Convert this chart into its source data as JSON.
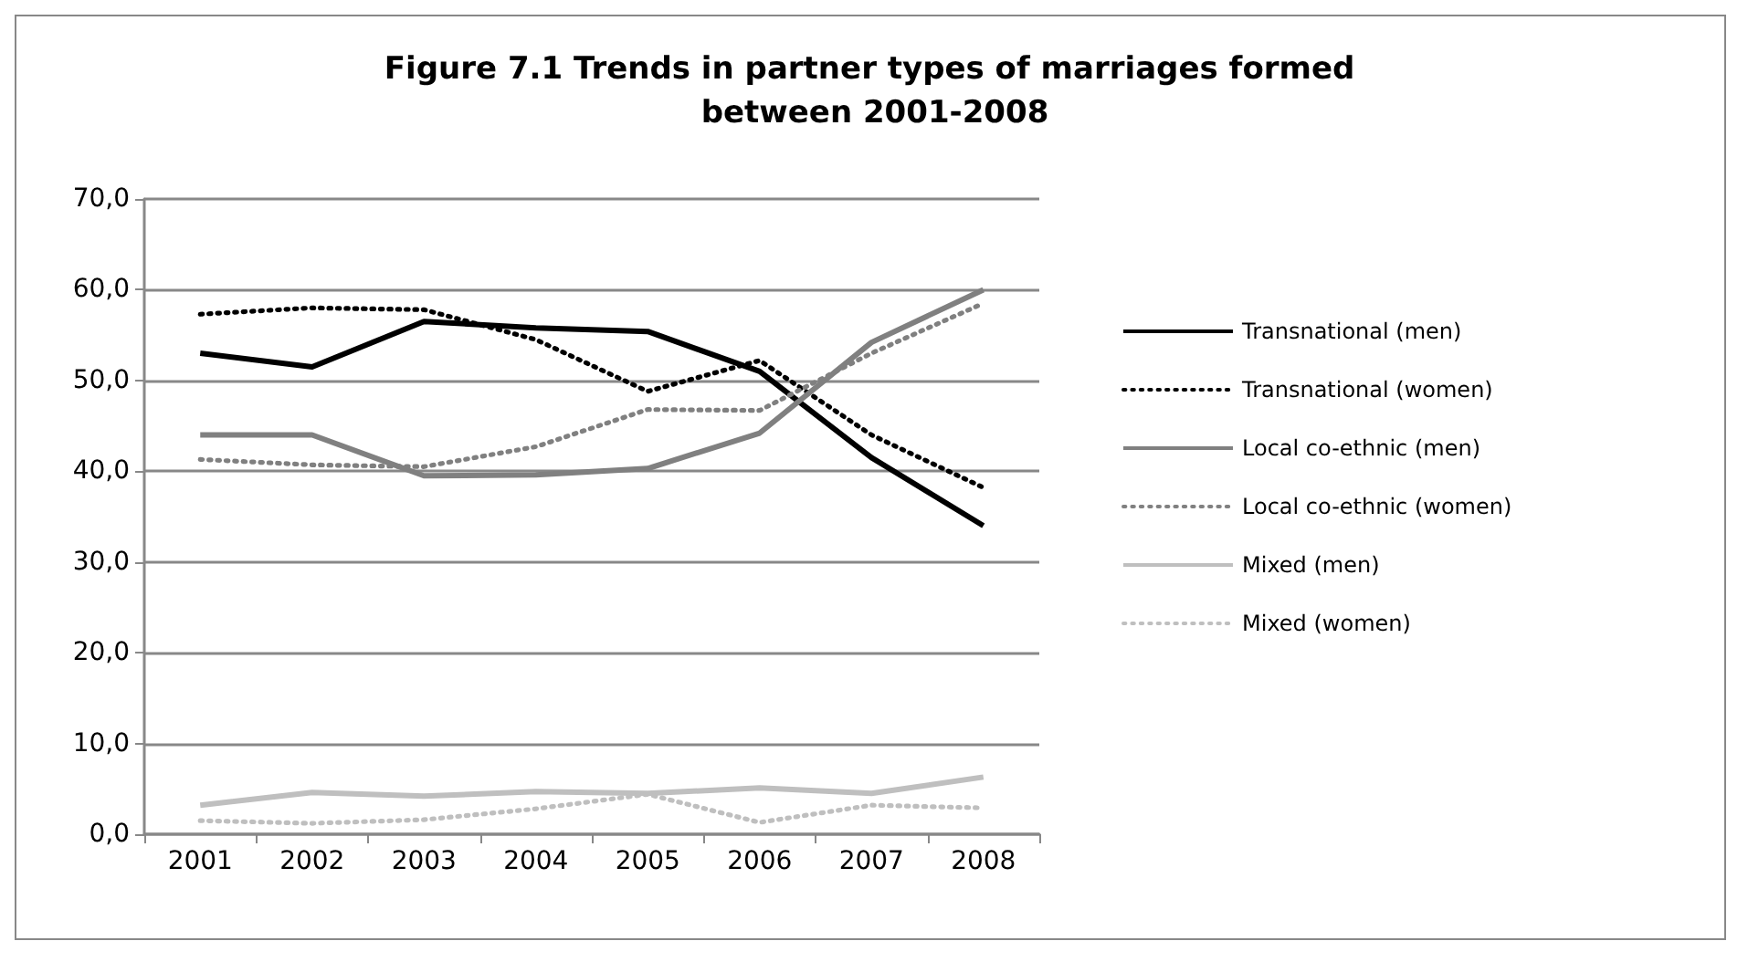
{
  "chart_data": {
    "type": "line",
    "title": "Figure 7.1 Trends in partner types of marriages formed between 2001-2008",
    "categories": [
      "2001",
      "2002",
      "2003",
      "2004",
      "2005",
      "2006",
      "2007",
      "2008"
    ],
    "series": [
      {
        "name": "Transnational (men)",
        "color": "#000000",
        "line_style": "solid",
        "values": [
          53,
          51.5,
          56.5,
          55.8,
          55.4,
          51,
          41.5,
          34
        ]
      },
      {
        "name": "Transnational (women)",
        "color": "#000000",
        "line_style": "dotted",
        "values": [
          57.3,
          58,
          57.8,
          54.5,
          48.8,
          52.2,
          44,
          38.2
        ]
      },
      {
        "name": "Local co-ethnic (men)",
        "color": "#808080",
        "line_style": "solid",
        "values": [
          44,
          44,
          39.5,
          39.6,
          40.3,
          44.2,
          54.2,
          60
        ]
      },
      {
        "name": "Local co-ethnic (women)",
        "color": "#808080",
        "line_style": "dotted",
        "values": [
          41.3,
          40.7,
          40.5,
          42.7,
          46.8,
          46.7,
          53,
          58.5
        ]
      },
      {
        "name": "Mixed (men)",
        "color": "#bfbfbf",
        "line_style": "solid",
        "values": [
          3.2,
          4.6,
          4.2,
          4.7,
          4.5,
          5.1,
          4.5,
          6.3
        ]
      },
      {
        "name": "Mixed (women)",
        "color": "#bfbfbf",
        "line_style": "dotted",
        "values": [
          1.5,
          1.2,
          1.6,
          2.8,
          4.4,
          1.3,
          3.2,
          2.9
        ]
      }
    ],
    "ylim": [
      0,
      70
    ],
    "yticks": [
      {
        "value": 0,
        "label": "0,0"
      },
      {
        "value": 10,
        "label": "10,0"
      },
      {
        "value": 20,
        "label": "20,0"
      },
      {
        "value": 30,
        "label": "30,0"
      },
      {
        "value": 40,
        "label": "40,0"
      },
      {
        "value": 50,
        "label": "50,0"
      },
      {
        "value": 60,
        "label": "60,0"
      },
      {
        "value": 70,
        "label": "70,0"
      }
    ],
    "grid": "y",
    "legend": "right",
    "marker": "none"
  }
}
